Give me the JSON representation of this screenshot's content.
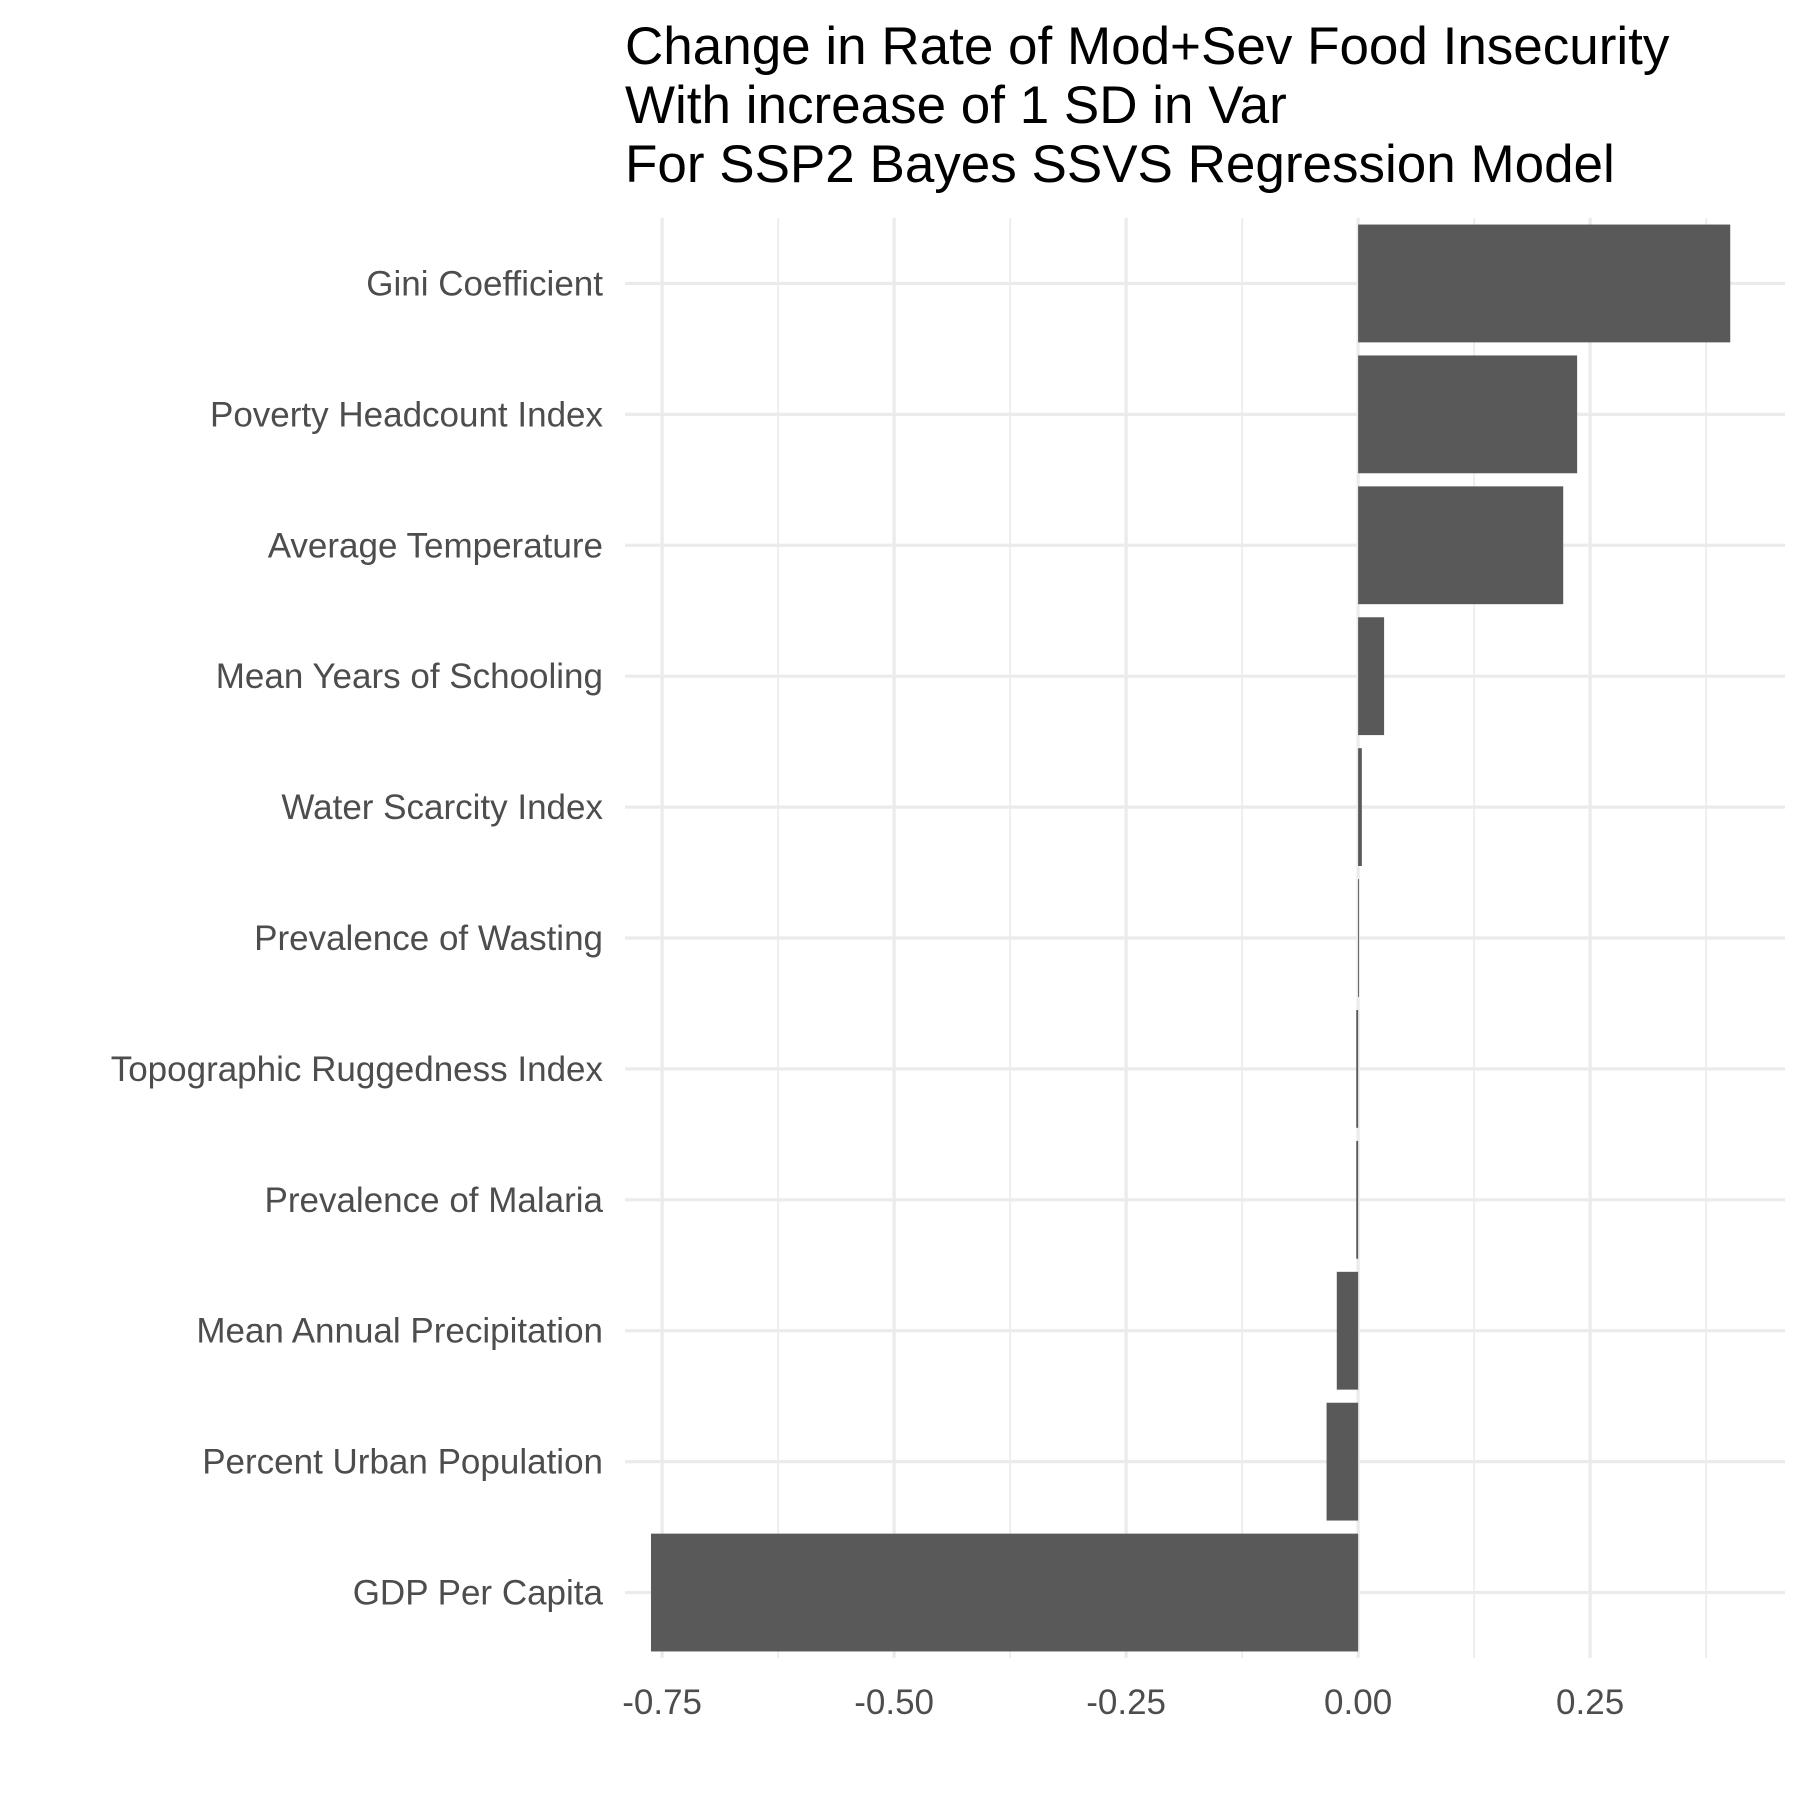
{
  "chart_data": {
    "type": "bar",
    "orientation": "horizontal",
    "title_lines": [
      "Change in Rate of Mod+Sev Food Insecurity",
      "With increase of 1 SD in Var",
      "For SSP2 Bayes SSVS Regression Model"
    ],
    "xlabel": "",
    "ylabel": "",
    "categories": [
      "Gini Coefficient",
      "Poverty Headcount Index",
      "Average Temperature",
      "Mean Years of Schooling",
      "Water Scarcity Index",
      "Prevalence of Wasting",
      "Topographic Ruggedness Index",
      "Prevalence of Malaria",
      "Mean Annual Precipitation",
      "Percent Urban Population",
      "GDP Per Capita"
    ],
    "values": [
      0.401,
      0.236,
      0.221,
      0.028,
      0.004,
      0.001,
      -0.002,
      -0.002,
      -0.023,
      -0.034,
      -0.762
    ],
    "xlim": [
      -0.79,
      0.46
    ],
    "xticks": [
      -0.75,
      -0.5,
      -0.25,
      0.0,
      0.25
    ],
    "xtick_labels": [
      "-0.75",
      "-0.50",
      "-0.25",
      "0.00",
      "0.25"
    ],
    "grid": true,
    "bar_color": "#595959",
    "major_grid_color": "#ebebeb",
    "minor_grid_color": "#ebebeb",
    "text_color": "#4d4d4d",
    "title_color": "#000000"
  }
}
